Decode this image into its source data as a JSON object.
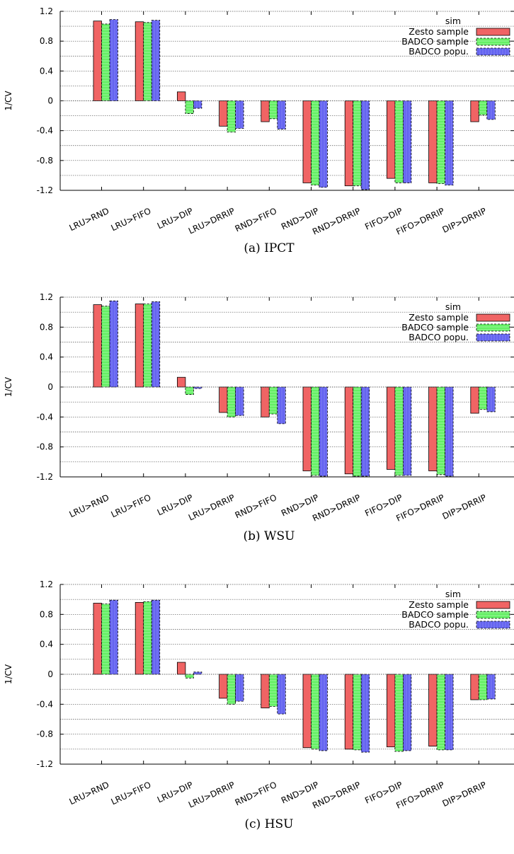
{
  "categories": [
    "LRU>RND",
    "LRU>FIFO",
    "LRU>DIP",
    "LRU>DRRIP",
    "RND>FIFO",
    "RND>DIP",
    "RND>DRRIP",
    "FIFO>DIP",
    "FIFO>DRRIP",
    "DIP>DRRIP"
  ],
  "colors": {
    "Zesto sample": "#f06464",
    "BADCO sample": "#64f064",
    "BADCO popu.": "#6464f0"
  },
  "chart_data": [
    {
      "type": "bar",
      "caption": "(a) IPCT",
      "ylabel": "1/CV",
      "ylim": [
        -1.2,
        1.2
      ],
      "yticks": [
        "1.2",
        "0.8",
        "0.4",
        "0",
        "-0.4",
        "-0.8",
        "-1.2"
      ],
      "grid": true,
      "legend_title": "sim",
      "legend_position": "top-right",
      "categories": [
        "LRU>RND",
        "LRU>FIFO",
        "LRU>DIP",
        "LRU>DRRIP",
        "RND>FIFO",
        "RND>DIP",
        "RND>DRRIP",
        "FIFO>DIP",
        "FIFO>DRRIP",
        "DIP>DRRIP"
      ],
      "series": [
        {
          "name": "Zesto sample",
          "values": [
            1.07,
            1.06,
            0.12,
            -0.34,
            -0.28,
            -1.1,
            -1.14,
            -1.04,
            -1.1,
            -0.28
          ]
        },
        {
          "name": "BADCO sample",
          "values": [
            1.03,
            1.05,
            -0.17,
            -0.42,
            -0.24,
            -1.13,
            -1.14,
            -1.1,
            -1.11,
            -0.19
          ]
        },
        {
          "name": "BADCO popu.",
          "values": [
            1.09,
            1.08,
            -0.1,
            -0.37,
            -0.38,
            -1.16,
            -1.19,
            -1.1,
            -1.13,
            -0.25
          ]
        }
      ]
    },
    {
      "type": "bar",
      "caption": "(b) WSU",
      "ylabel": "1/CV",
      "ylim": [
        -1.2,
        1.2
      ],
      "yticks": [
        "1.2",
        "0.8",
        "0.4",
        "0",
        "-0.4",
        "-0.8",
        "-1.2"
      ],
      "grid": true,
      "legend_title": "sim",
      "legend_position": "top-right",
      "categories": [
        "LRU>RND",
        "LRU>FIFO",
        "LRU>DIP",
        "LRU>DRRIP",
        "RND>FIFO",
        "RND>DIP",
        "RND>DRRIP",
        "FIFO>DIP",
        "FIFO>DRRIP",
        "DIP>DRRIP"
      ],
      "series": [
        {
          "name": "Zesto sample",
          "values": [
            1.1,
            1.11,
            0.13,
            -0.34,
            -0.4,
            -1.12,
            -1.16,
            -1.1,
            -1.12,
            -0.35
          ]
        },
        {
          "name": "BADCO sample",
          "values": [
            1.08,
            1.11,
            -0.1,
            -0.4,
            -0.36,
            -1.18,
            -1.19,
            -1.18,
            -1.17,
            -0.3
          ]
        },
        {
          "name": "BADCO popu.",
          "values": [
            1.15,
            1.14,
            -0.02,
            -0.38,
            -0.49,
            -1.19,
            -1.19,
            -1.18,
            -1.19,
            -0.33
          ]
        }
      ]
    },
    {
      "type": "bar",
      "caption": "(c) HSU",
      "ylabel": "1/CV",
      "ylim": [
        -1.2,
        1.2
      ],
      "yticks": [
        "1.2",
        "0.8",
        "0.4",
        "0",
        "-0.4",
        "-0.8",
        "-1.2"
      ],
      "grid": true,
      "legend_title": "sim",
      "legend_position": "top-right",
      "categories": [
        "LRU>RND",
        "LRU>FIFO",
        "LRU>DIP",
        "LRU>DRRIP",
        "RND>FIFO",
        "RND>DIP",
        "RND>DRRIP",
        "FIFO>DIP",
        "FIFO>DRRIP",
        "DIP>DRRIP"
      ],
      "series": [
        {
          "name": "Zesto sample",
          "values": [
            0.95,
            0.96,
            0.16,
            -0.32,
            -0.45,
            -0.98,
            -1.0,
            -0.97,
            -0.96,
            -0.34
          ]
        },
        {
          "name": "BADCO sample",
          "values": [
            0.94,
            0.97,
            -0.05,
            -0.4,
            -0.43,
            -1.0,
            -1.01,
            -1.03,
            -1.01,
            -0.34
          ]
        },
        {
          "name": "BADCO popu.",
          "values": [
            0.99,
            0.99,
            0.03,
            -0.36,
            -0.53,
            -1.02,
            -1.04,
            -1.02,
            -1.01,
            -0.33
          ]
        }
      ]
    }
  ]
}
